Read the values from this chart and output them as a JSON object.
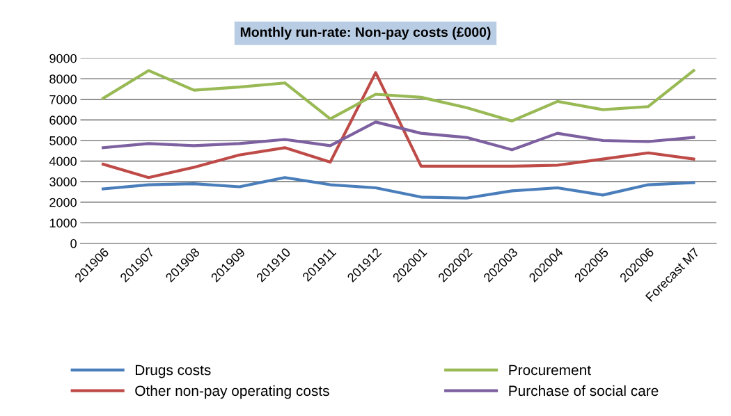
{
  "chart_data": {
    "type": "line",
    "title": "Monthly run-rate: Non-pay costs (£000)",
    "categories": [
      "201906",
      "201907",
      "201908",
      "201909",
      "201910",
      "201911",
      "201912",
      "202001",
      "202002",
      "202003",
      "202004",
      "202005",
      "202006",
      "Forecast M7"
    ],
    "series": [
      {
        "name": "Drugs costs",
        "color": "#4a7ebb",
        "values": [
          2650,
          2850,
          2900,
          2750,
          3200,
          2850,
          2700,
          2250,
          2200,
          2550,
          2700,
          2350,
          2850,
          2950
        ]
      },
      {
        "name": "Other non-pay operating costs",
        "color": "#be4b48",
        "values": [
          3850,
          3200,
          3700,
          4300,
          4650,
          3950,
          8300,
          3750,
          3750,
          3750,
          3800,
          4100,
          4400,
          4100
        ]
      },
      {
        "name": "Procurement",
        "color": "#98b954",
        "values": [
          7050,
          8400,
          7450,
          7600,
          7800,
          6050,
          7250,
          7100,
          6600,
          5950,
          6900,
          6500,
          6650,
          8400
        ]
      },
      {
        "name": "Purchase of social care",
        "color": "#7d60a0",
        "values": [
          4650,
          4850,
          4750,
          4850,
          5050,
          4750,
          5900,
          5350,
          5150,
          4550,
          5350,
          5000,
          4950,
          5150
        ]
      }
    ],
    "ylim": [
      0,
      9000
    ],
    "yticks": [
      0,
      1000,
      2000,
      3000,
      4000,
      5000,
      6000,
      7000,
      8000,
      9000
    ],
    "grid": "y",
    "legend": "bottom",
    "marker": "none",
    "line_style": "solid"
  }
}
